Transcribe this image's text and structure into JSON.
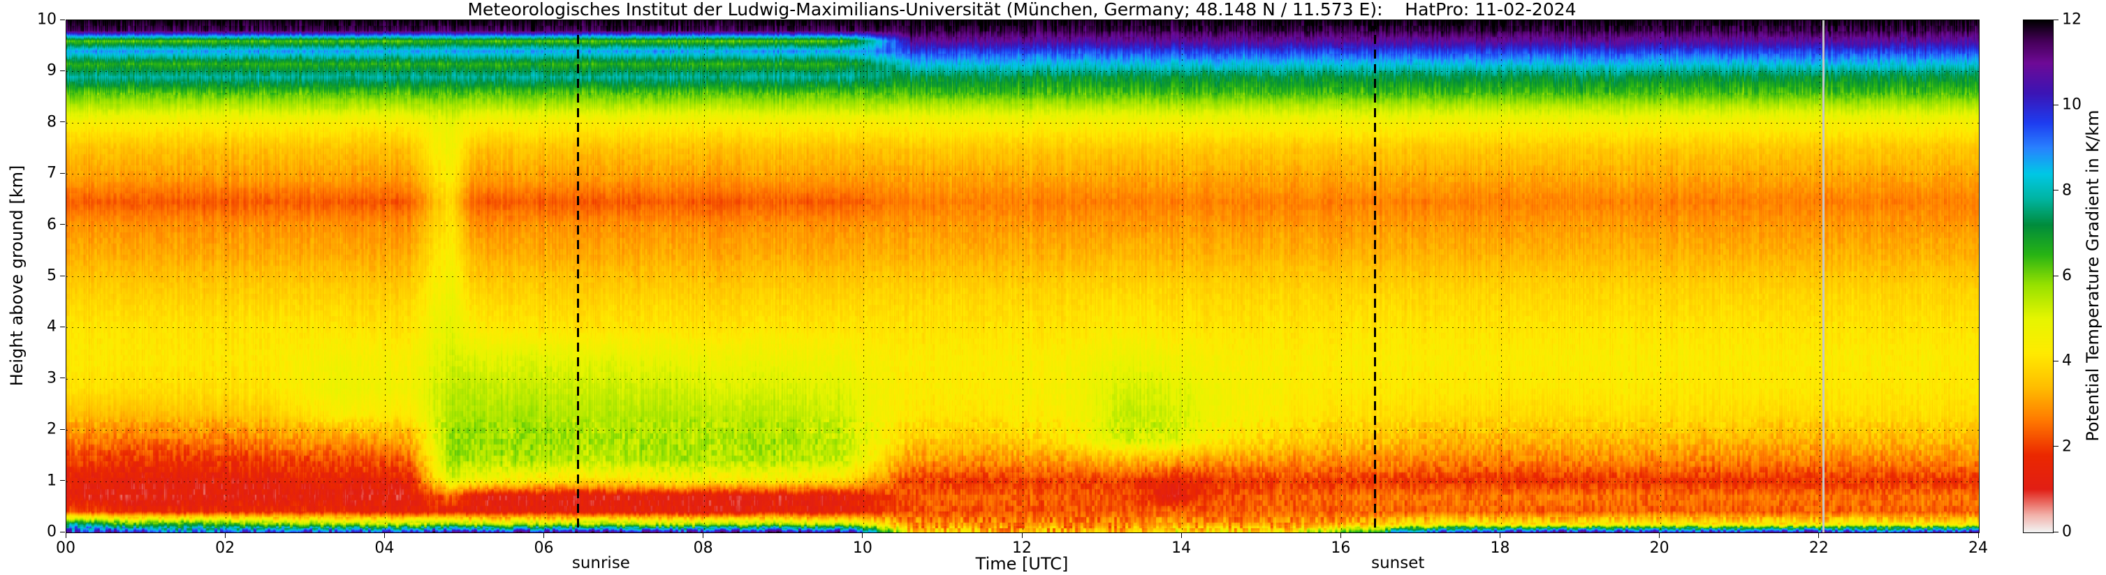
{
  "title": "Meteorologisches Institut der Ludwig-Maximilians-Universität (München, Germany; 48.148 N / 11.573 E):    HatPro: 11-02-2024",
  "axes": {
    "xlabel": "Time [UTC]",
    "ylabel": "Height above ground [km]",
    "x_ticks": [
      "00",
      "02",
      "04",
      "06",
      "08",
      "10",
      "12",
      "14",
      "16",
      "18",
      "20",
      "22",
      "24"
    ],
    "y_ticks": [
      "0",
      "1",
      "2",
      "3",
      "4",
      "5",
      "6",
      "7",
      "8",
      "9",
      "10"
    ]
  },
  "annotations": {
    "sunrise_label": "sunrise",
    "sunrise_time": 6.42,
    "sunset_label": "sunset",
    "sunset_time": 16.42,
    "gap_time": 22.05
  },
  "colorbar": {
    "label": "Potential Temperature Gradient in K/km",
    "ticks": [
      "0",
      "2",
      "4",
      "6",
      "8",
      "10",
      "12"
    ],
    "min": 0,
    "max": 12
  },
  "chart_data": {
    "type": "heatmap",
    "title": "Meteorologisches Institut der Ludwig-Maximilians-Universität (München, Germany; 48.148 N / 11.573 E):    HatPro: 11-02-2024",
    "xlabel": "Time [UTC]",
    "ylabel": "Height above ground [km]",
    "value_label": "Potential Temperature Gradient in K/km",
    "x_range": [
      0,
      24
    ],
    "y_range": [
      0,
      10
    ],
    "value_range": [
      0,
      12
    ],
    "grid": {
      "x_step_hours": 2,
      "y_step_km": 1
    },
    "legend_position": "right-colorbar",
    "times": [
      0,
      0.75,
      1.5,
      2.5,
      3.5,
      4.3,
      4.8,
      5.1,
      5.75,
      6.75,
      7.75,
      8.75,
      9.75,
      10.15,
      10.6,
      11.5,
      12.5,
      13.3,
      13.9,
      14.5,
      15.4,
      16.25,
      17.25,
      18.5,
      20,
      21.5,
      22.75,
      24
    ],
    "heights": [
      0,
      0.15,
      0.4,
      0.7,
      1.0,
      1.4,
      1.8,
      2.3,
      2.8,
      3.4,
      4.0,
      4.7,
      5.4,
      6.0,
      6.45,
      6.9,
      7.5,
      8.0,
      8.3,
      8.6,
      8.9,
      9.15,
      9.4,
      9.6,
      9.8,
      10
    ],
    "columns": [
      [
        9.8,
        8.0,
        2.2,
        1.3,
        1.4,
        2.0,
        2.7,
        3.4,
        4.0,
        4.2,
        4.1,
        3.7,
        3.2,
        2.9,
        2.3,
        3.0,
        3.5,
        4.4,
        5.4,
        6.3,
        7.8,
        6.6,
        8.8,
        6.2,
        11.5,
        12
      ],
      [
        10.5,
        6.5,
        1.6,
        1.1,
        1.3,
        1.9,
        2.6,
        3.4,
        4.0,
        4.2,
        4.1,
        3.7,
        3.2,
        2.9,
        2.3,
        3.0,
        3.5,
        4.4,
        5.4,
        6.3,
        7.8,
        6.6,
        8.8,
        6.2,
        11.5,
        12
      ],
      [
        9.0,
        6.8,
        1.7,
        1.2,
        1.3,
        1.9,
        2.6,
        3.5,
        4.0,
        4.2,
        4.1,
        3.7,
        3.2,
        2.9,
        2.3,
        3.0,
        3.5,
        4.4,
        5.4,
        6.3,
        7.8,
        6.6,
        8.8,
        6.2,
        11.5,
        12
      ],
      [
        10.0,
        6.0,
        1.8,
        1.2,
        1.4,
        2.0,
        2.8,
        3.6,
        4.1,
        4.2,
        4.1,
        3.7,
        3.2,
        2.9,
        2.3,
        3.0,
        3.5,
        4.4,
        5.4,
        6.3,
        7.8,
        6.6,
        8.8,
        6.2,
        11.5,
        12
      ],
      [
        10.0,
        5.8,
        1.6,
        1.2,
        1.5,
        2.1,
        3.0,
        4.4,
        4.8,
        4.6,
        4.1,
        3.7,
        3.2,
        2.9,
        2.3,
        3.0,
        3.5,
        4.4,
        5.4,
        6.3,
        7.8,
        6.6,
        8.8,
        6.2,
        11.5,
        12
      ],
      [
        10.0,
        5.5,
        1.5,
        1.2,
        1.5,
        2.4,
        3.2,
        4.2,
        4.6,
        4.4,
        4.1,
        3.7,
        3.2,
        2.9,
        2.3,
        3.0,
        3.5,
        4.4,
        5.4,
        6.3,
        7.8,
        6.6,
        8.8,
        6.2,
        11.5,
        12
      ],
      [
        11.0,
        6.0,
        1.5,
        2.5,
        5.0,
        5.8,
        5.8,
        5.6,
        5.4,
        5.2,
        5.0,
        4.8,
        4.5,
        4.2,
        4.0,
        4.4,
        4.8,
        4.9,
        5.6,
        6.4,
        7.8,
        6.6,
        8.8,
        6.4,
        11.5,
        12
      ],
      [
        11.0,
        5.5,
        1.4,
        1.3,
        4.5,
        5.6,
        5.7,
        5.6,
        5.4,
        5.0,
        4.3,
        3.8,
        3.3,
        2.9,
        2.3,
        3.0,
        3.5,
        4.4,
        5.4,
        6.3,
        7.8,
        6.6,
        8.8,
        6.2,
        11.5,
        12
      ],
      [
        10.5,
        5.5,
        1.4,
        1.2,
        4.2,
        5.5,
        5.7,
        5.6,
        5.3,
        5.0,
        4.1,
        3.7,
        3.2,
        2.9,
        2.3,
        3.0,
        3.5,
        4.4,
        5.4,
        6.3,
        7.8,
        6.6,
        8.8,
        6.2,
        11.5,
        12
      ],
      [
        11.0,
        5.8,
        1.4,
        1.2,
        4.0,
        5.4,
        5.6,
        5.5,
        5.3,
        4.9,
        4.1,
        3.7,
        3.2,
        2.9,
        2.3,
        3.0,
        3.5,
        4.4,
        5.4,
        6.3,
        7.8,
        6.6,
        8.8,
        6.2,
        11.5,
        12
      ],
      [
        10.5,
        5.5,
        1.3,
        1.2,
        4.4,
        5.6,
        5.6,
        5.5,
        5.2,
        4.8,
        4.1,
        3.7,
        3.2,
        2.9,
        2.3,
        3.0,
        3.5,
        4.4,
        5.4,
        6.3,
        7.8,
        6.6,
        8.8,
        6.2,
        11.5,
        12
      ],
      [
        11.0,
        5.6,
        1.4,
        1.2,
        4.2,
        5.5,
        5.6,
        5.4,
        5.1,
        4.7,
        4.1,
        3.7,
        3.2,
        2.9,
        2.3,
        3.0,
        3.5,
        4.4,
        5.4,
        6.3,
        7.8,
        6.6,
        8.8,
        6.2,
        11.5,
        12
      ],
      [
        10.5,
        5.4,
        1.4,
        1.3,
        4.0,
        5.3,
        5.4,
        5.2,
        5.0,
        4.6,
        4.1,
        3.7,
        3.2,
        2.9,
        2.3,
        3.0,
        3.5,
        4.4,
        5.4,
        6.3,
        7.8,
        6.6,
        8.8,
        6.2,
        11.5,
        12
      ],
      [
        8.0,
        4.5,
        1.8,
        1.8,
        3.0,
        4.2,
        4.6,
        4.6,
        4.6,
        4.4,
        4.1,
        3.8,
        3.3,
        3.0,
        2.5,
        3.0,
        3.5,
        4.4,
        5.4,
        6.3,
        7.5,
        7.4,
        9.0,
        8.0,
        11.5,
        12
      ],
      [
        4.0,
        3.0,
        2.2,
        2.3,
        2.0,
        3.0,
        3.7,
        4.2,
        4.3,
        4.3,
        4.1,
        3.8,
        3.3,
        3.0,
        2.7,
        3.1,
        3.6,
        4.5,
        5.4,
        6.4,
        7.2,
        8.4,
        9.6,
        10.8,
        11.6,
        12
      ],
      [
        3.5,
        2.8,
        2.2,
        2.4,
        1.9,
        2.9,
        3.6,
        4.1,
        4.3,
        4.3,
        4.1,
        3.8,
        3.3,
        3.0,
        2.7,
        3.1,
        3.6,
        4.5,
        5.4,
        6.4,
        7.2,
        8.4,
        9.6,
        10.8,
        11.6,
        12
      ],
      [
        3.5,
        2.8,
        2.3,
        2.3,
        2.0,
        3.0,
        4.0,
        4.4,
        4.5,
        4.4,
        4.1,
        3.8,
        3.3,
        3.0,
        2.7,
        3.1,
        3.6,
        4.5,
        5.4,
        6.4,
        7.2,
        8.4,
        9.6,
        10.8,
        11.6,
        12
      ],
      [
        3.6,
        2.9,
        2.3,
        2.2,
        2.0,
        3.4,
        5.2,
        5.4,
        5.2,
        4.8,
        4.3,
        3.9,
        3.4,
        3.0,
        2.7,
        3.1,
        3.6,
        4.5,
        5.4,
        6.4,
        7.2,
        8.4,
        9.6,
        10.8,
        11.6,
        12
      ],
      [
        4.5,
        3.0,
        2.4,
        1.2,
        1.4,
        3.2,
        5.0,
        5.2,
        5.0,
        4.6,
        4.1,
        3.8,
        3.3,
        3.0,
        2.7,
        3.1,
        3.6,
        4.5,
        5.4,
        6.4,
        7.2,
        8.4,
        9.6,
        10.8,
        11.6,
        12
      ],
      [
        4.0,
        2.9,
        2.3,
        2.2,
        1.9,
        3.0,
        4.2,
        4.6,
        4.6,
        4.4,
        4.1,
        3.8,
        3.3,
        3.0,
        2.7,
        3.1,
        3.6,
        4.5,
        5.4,
        6.4,
        7.2,
        8.4,
        9.6,
        10.8,
        11.6,
        12
      ],
      [
        4.5,
        3.0,
        2.4,
        2.4,
        2.0,
        2.9,
        3.7,
        4.2,
        4.3,
        4.3,
        4.1,
        3.8,
        3.3,
        3.0,
        2.7,
        3.1,
        3.6,
        4.5,
        5.4,
        6.4,
        7.2,
        8.4,
        9.6,
        10.8,
        11.6,
        12
      ],
      [
        6.5,
        3.4,
        2.4,
        2.5,
        1.9,
        2.8,
        3.5,
        4.0,
        4.2,
        4.3,
        4.1,
        3.8,
        3.3,
        3.0,
        2.7,
        3.1,
        3.6,
        4.5,
        5.4,
        6.4,
        7.2,
        8.4,
        9.6,
        10.8,
        11.6,
        12
      ],
      [
        10.0,
        4.5,
        2.4,
        2.6,
        1.9,
        2.7,
        3.3,
        3.9,
        4.2,
        4.3,
        4.1,
        3.8,
        3.3,
        3.0,
        2.7,
        3.1,
        3.6,
        4.5,
        5.4,
        6.4,
        7.2,
        8.4,
        9.6,
        10.8,
        11.6,
        12
      ],
      [
        10.5,
        4.2,
        2.3,
        2.6,
        1.8,
        2.7,
        3.3,
        3.9,
        4.2,
        4.3,
        4.1,
        3.8,
        3.3,
        3.0,
        2.7,
        3.1,
        3.6,
        4.5,
        5.4,
        6.4,
        7.2,
        8.4,
        9.6,
        10.8,
        11.6,
        12
      ],
      [
        10.0,
        4.5,
        2.4,
        2.5,
        1.9,
        2.8,
        3.4,
        4.0,
        4.2,
        4.3,
        4.1,
        3.8,
        3.3,
        3.0,
        2.7,
        3.1,
        3.6,
        4.5,
        5.4,
        6.4,
        7.2,
        8.4,
        9.6,
        10.8,
        11.6,
        12
      ],
      [
        10.5,
        4.3,
        2.3,
        2.6,
        1.8,
        2.7,
        3.3,
        3.9,
        4.2,
        4.3,
        4.1,
        3.8,
        3.3,
        3.0,
        2.7,
        3.1,
        3.6,
        4.5,
        5.4,
        6.4,
        7.2,
        8.4,
        9.6,
        10.8,
        11.6,
        12
      ],
      [
        10.0,
        4.4,
        2.4,
        2.5,
        1.9,
        2.8,
        3.4,
        4.0,
        4.2,
        4.3,
        4.1,
        3.8,
        3.3,
        3.0,
        2.7,
        3.1,
        3.6,
        4.5,
        5.4,
        6.4,
        7.2,
        8.4,
        9.6,
        10.8,
        11.6,
        12
      ],
      [
        10.5,
        4.4,
        2.4,
        2.6,
        1.9,
        2.8,
        3.4,
        4.0,
        4.2,
        4.3,
        4.1,
        3.8,
        3.3,
        3.0,
        2.7,
        3.1,
        3.6,
        4.5,
        5.4,
        6.4,
        7.2,
        8.4,
        9.6,
        10.8,
        11.6,
        12
      ]
    ],
    "colormap": [
      [
        0.0,
        "#f2f2f2"
      ],
      [
        0.4,
        "#f2b0a8"
      ],
      [
        1.0,
        "#e11e14"
      ],
      [
        1.8,
        "#eb2800"
      ],
      [
        2.6,
        "#ff7800"
      ],
      [
        3.4,
        "#ffbe00"
      ],
      [
        4.2,
        "#ffeb00"
      ],
      [
        5.0,
        "#e6f500"
      ],
      [
        5.8,
        "#96e100"
      ],
      [
        6.5,
        "#28b414"
      ],
      [
        7.2,
        "#008c3c"
      ],
      [
        7.8,
        "#00b4a0"
      ],
      [
        8.4,
        "#00c8e6"
      ],
      [
        9.0,
        "#2882ff"
      ],
      [
        9.6,
        "#1e3cf0"
      ],
      [
        10.3,
        "#3c14b4"
      ],
      [
        11.0,
        "#6e0a96"
      ],
      [
        11.5,
        "#46005a"
      ],
      [
        12.0,
        "#000000"
      ]
    ]
  }
}
